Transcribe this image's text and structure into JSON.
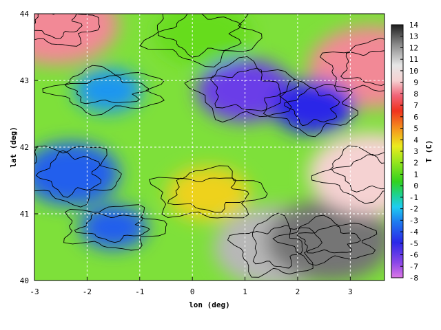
{
  "chart_data": {
    "type": "heatmap",
    "xlabel": "lon (deg)",
    "ylabel": "lat (deg)",
    "colorbar_label": "T (C)",
    "xlim": [
      -3,
      3.65
    ],
    "ylim": [
      40,
      44
    ],
    "x_ticks": [
      "-3",
      "-2",
      "-1",
      "0",
      "1",
      "2",
      "3"
    ],
    "y_ticks": [
      "40",
      "41",
      "42",
      "43",
      "44"
    ],
    "colorbar_ticks": [
      "-8",
      "-7",
      "-6",
      "-5",
      "-4",
      "-3",
      "-2",
      "-1",
      "0",
      "1",
      "2",
      "3",
      "4",
      "5",
      "6",
      "7",
      "8",
      "9",
      "10",
      "11",
      "12",
      "13",
      "14"
    ],
    "colorbar_range": [
      -8,
      14
    ],
    "grid": true,
    "contours": true,
    "features": [
      {
        "lon": -2.6,
        "lat": 43.85,
        "value": 9
      },
      {
        "lon": 3.4,
        "lat": 43.2,
        "value": 9
      },
      {
        "lon": 1.0,
        "lat": 42.85,
        "value": -6
      },
      {
        "lon": -1.6,
        "lat": 42.85,
        "value": -3
      },
      {
        "lon": 2.3,
        "lat": 42.6,
        "value": -5
      },
      {
        "lon": -2.3,
        "lat": 41.6,
        "value": -4
      },
      {
        "lon": -1.5,
        "lat": 40.8,
        "value": -4
      },
      {
        "lon": 0.3,
        "lat": 41.3,
        "value": 4
      },
      {
        "lon": 1.6,
        "lat": 40.5,
        "value": 12
      },
      {
        "lon": 2.6,
        "lat": 40.6,
        "value": 13
      },
      {
        "lon": 3.4,
        "lat": 41.6,
        "value": 10
      },
      {
        "lon": 0.2,
        "lat": 43.7,
        "value": 1
      }
    ]
  }
}
